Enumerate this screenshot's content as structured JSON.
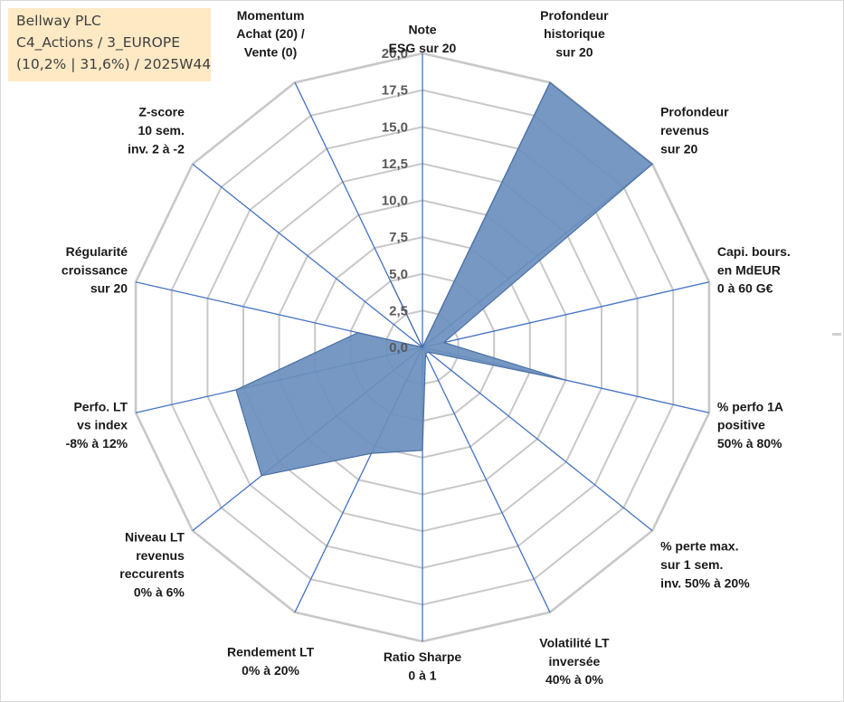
{
  "info_box": {
    "line1": "Bellway PLC",
    "line2": "C4_Actions / 3_EUROPE",
    "line3": "(10,2% | 31,6%) / 2025W44"
  },
  "chart_data": {
    "type": "radar",
    "title": "",
    "rmin": 0,
    "rmax": 20,
    "tick_step": 2.5,
    "tick_labels": [
      "0,0",
      "2,5",
      "5,0",
      "7,5",
      "10,0",
      "12,5",
      "15,0",
      "17,5",
      "20,0"
    ],
    "axes": [
      {
        "label": [
          "Note",
          "ESG sur 20"
        ],
        "value": 0
      },
      {
        "label": [
          "Profondeur",
          "historique",
          "sur 20"
        ],
        "value": 20
      },
      {
        "label": [
          "Profondeur",
          "revenus",
          "sur 20"
        ],
        "value": 20
      },
      {
        "label": [
          "Capi. bours.",
          "en MdEUR",
          "0 à 60 G€"
        ],
        "value": 1.5
      },
      {
        "label": [
          "% perfo 1A",
          "positive",
          "50% à 80%"
        ],
        "value": 10
      },
      {
        "label": [
          "% perte max.",
          "sur 1 sem.",
          "inv. 50% à 20%"
        ],
        "value": 0.5
      },
      {
        "label": [
          "Volatilité LT",
          "inversée",
          "40% à 0%"
        ],
        "value": 0.5
      },
      {
        "label": [
          "Ratio Sharpe",
          "0 à 1"
        ],
        "value": 7
      },
      {
        "label": [
          "Rendement LT",
          "0% à 20%"
        ],
        "value": 8
      },
      {
        "label": [
          "Niveau LT",
          "revenus",
          "reccurents",
          "0% à 6%"
        ],
        "value": 14
      },
      {
        "label": [
          "Perfo. LT",
          "vs index",
          "-8% à 12%"
        ],
        "value": 13
      },
      {
        "label": [
          "Régularité",
          "croissance",
          "sur 20"
        ],
        "value": 4.5
      },
      {
        "label": [
          "Z-score",
          "10 sem.",
          "inv. 2 à -2"
        ],
        "value": 0
      },
      {
        "label": [
          "Momentum",
          "Achat (20) /",
          "Vente (0)"
        ],
        "value": 5
      }
    ],
    "colors": {
      "fill": "#6a8fbd",
      "stroke": "#4a6fa5",
      "grid": "#c8c8c8",
      "axis": "#4472c4"
    }
  }
}
